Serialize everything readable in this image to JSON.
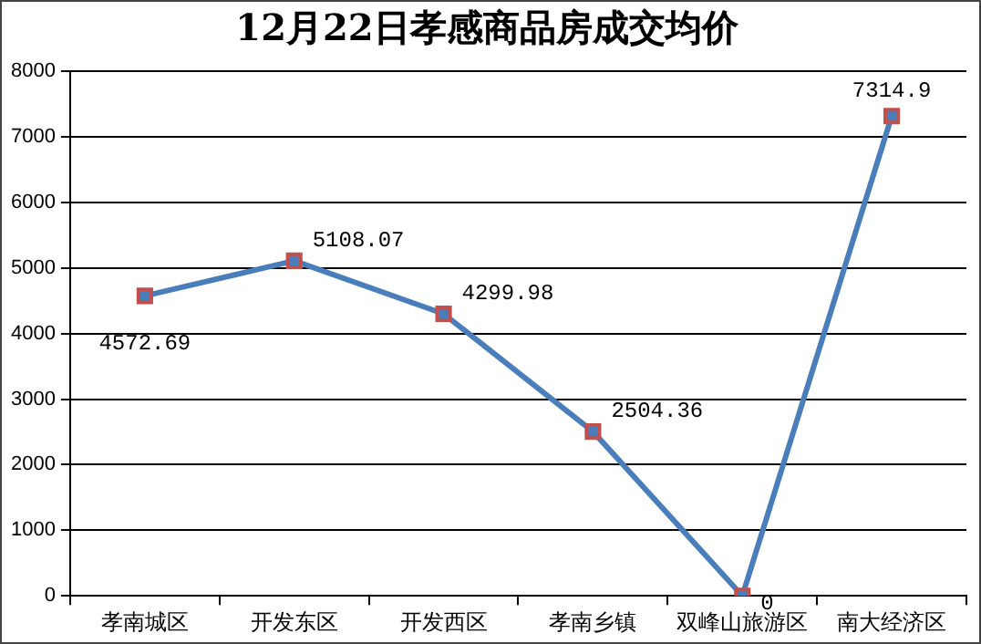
{
  "chart_data": {
    "type": "line",
    "title": "12月22日孝感商品房成交均价",
    "categories": [
      "孝南城区",
      "开发东区",
      "开发西区",
      "孝南乡镇",
      "双峰山旅游区",
      "南大经济区"
    ],
    "series": [
      {
        "color": "#4a7ebb",
        "values": [
          4572.69,
          5108.07,
          4299.98,
          2504.36,
          0,
          7314.9
        ]
      }
    ],
    "ylim": [
      0,
      8000
    ],
    "yticks": [
      0,
      1000,
      2000,
      3000,
      4000,
      5000,
      6000,
      7000,
      8000
    ],
    "grid": "y",
    "legend": false,
    "marker": "square",
    "data_labels": true
  }
}
